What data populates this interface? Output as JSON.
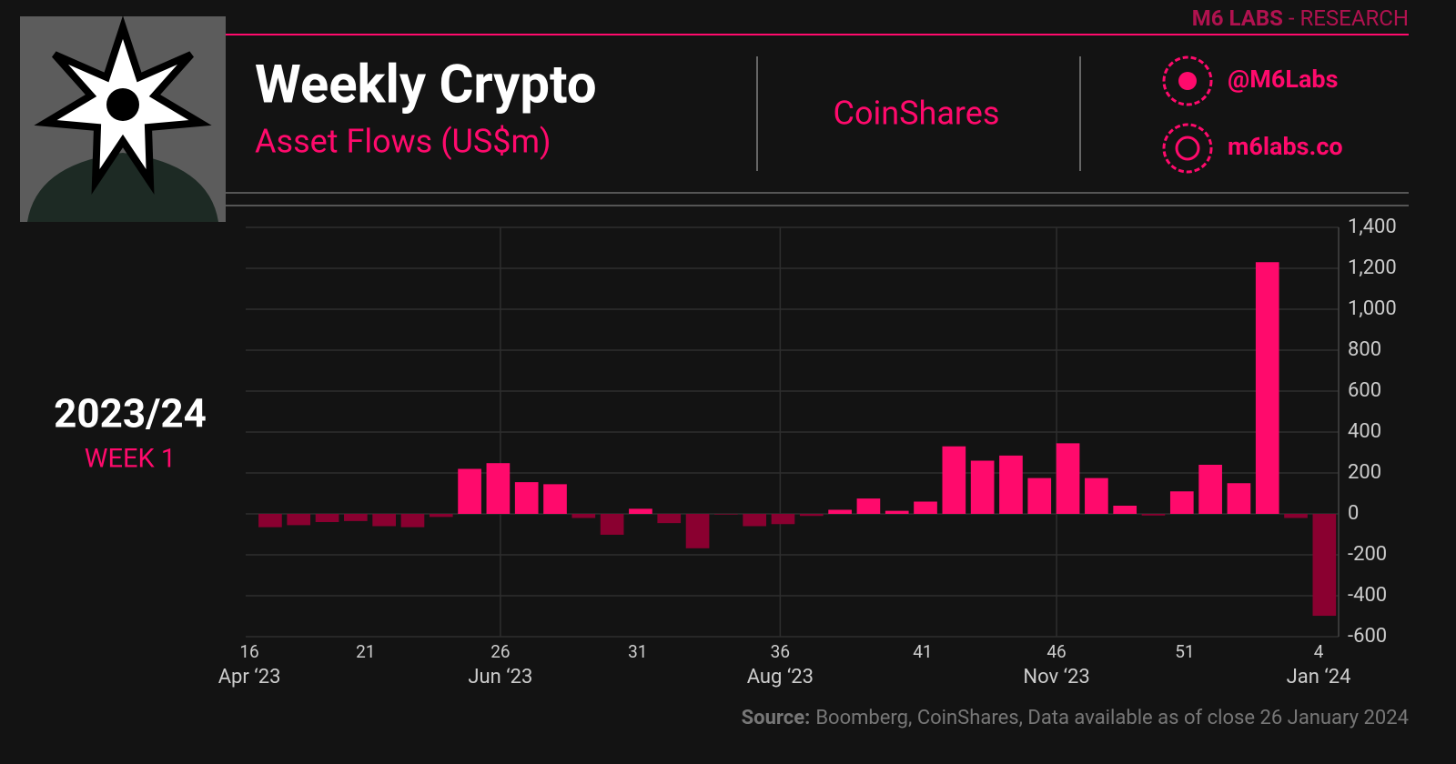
{
  "brand": "M6 LABS",
  "brand_section": "- RESEARCH",
  "twitter": "@M6Labs",
  "website": "m6labs.co",
  "partner": "CoinShares",
  "season": "2023/24",
  "week": "WEEK 1",
  "source_label": "Source:",
  "source_text": "Boomberg, CoinShares, Data available as of close 26 January 2024",
  "chart_data": {
    "type": "bar",
    "title": "Weekly Crypto",
    "subtitle": "Asset Flows (US$m)",
    "categories": [
      null,
      null,
      null,
      null,
      null,
      null,
      null,
      null,
      null,
      null,
      null,
      null,
      null,
      null,
      null,
      null,
      null,
      null,
      null,
      null,
      null,
      null,
      null,
      null,
      null,
      null,
      null,
      null,
      null,
      null,
      null,
      null,
      null,
      null,
      null,
      null,
      null,
      null
    ],
    "values": [
      -65,
      -55,
      -40,
      -35,
      -60,
      -65,
      -15,
      220,
      248,
      155,
      145,
      -20,
      -102,
      25,
      -45,
      -168,
      -3,
      -60,
      -50,
      -10,
      20,
      75,
      15,
      60,
      330,
      260,
      285,
      175,
      345,
      175,
      40,
      -8,
      110,
      240,
      150,
      1230,
      -20,
      -498
    ],
    "color": "#ff0a6c",
    "negative_color": "#8a0030",
    "xlim": [
      -0.86,
      37.5
    ],
    "xticks": [
      {
        "value": -0.73,
        "label": "16"
      },
      {
        "value": 3.35,
        "label": "21"
      },
      {
        "value": 8.08,
        "label": "26"
      },
      {
        "value": 12.9,
        "label": "31"
      },
      {
        "value": 17.9,
        "label": "36"
      },
      {
        "value": 22.9,
        "label": "41"
      },
      {
        "value": 27.6,
        "label": "46"
      },
      {
        "value": 32.1,
        "label": "51"
      },
      {
        "value": 36.8,
        "label": "4"
      }
    ],
    "month_ticks": [
      {
        "value": -0.73,
        "label": "Apr ‘23"
      },
      {
        "value": 8.08,
        "label": "Jun ‘23"
      },
      {
        "value": 17.9,
        "label": "Aug ‘23"
      },
      {
        "value": 27.6,
        "label": "Nov ‘23"
      },
      {
        "value": 36.8,
        "label": "Jan ‘24"
      }
    ],
    "ylim": [
      -600,
      1400
    ],
    "yticks": [
      -600,
      -400,
      -200,
      0,
      200,
      400,
      600,
      800,
      {
        "value": 1000,
        "label": "1,000"
      },
      {
        "value": 1200,
        "label": "1,200"
      },
      {
        "value": 1400,
        "label": "1,400"
      }
    ],
    "grid": true
  }
}
